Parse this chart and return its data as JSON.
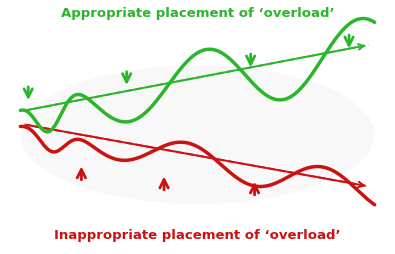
{
  "title_top": "Appropriate placement of ‘overload’",
  "title_bottom": "Inappropriate placement of ‘overload’",
  "title_top_color": "#2ab52a",
  "title_bottom_color": "#cc1111",
  "green_color": "#2ab52a",
  "red_color": "#cc1111",
  "background_color": "#ffffff"
}
